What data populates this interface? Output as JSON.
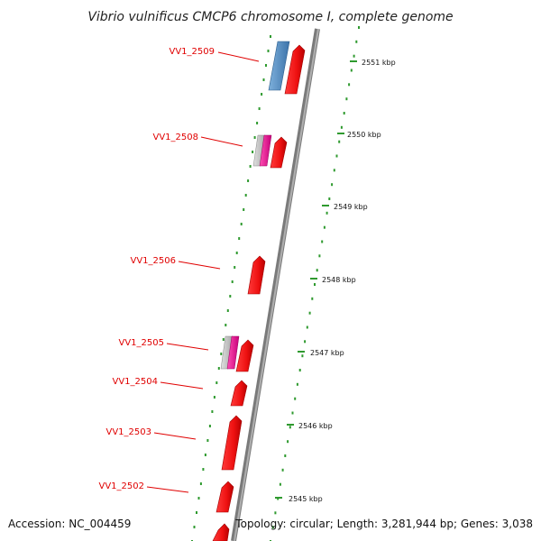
{
  "title": "Vibrio vulnificus CMCP6 chromosome I, complete genome",
  "footer": {
    "accession": "Accession: NC_004459",
    "topology": "Topology: circular; Length: 3,281,944 bp; Genes: 3,038"
  },
  "colors": {
    "backbone": "#8a8a8a",
    "tick": "#2f9a2f",
    "gene_label": "#e00000",
    "cds": "#ee1111",
    "trna": "#4a83b8",
    "rrna_grey": "#bdbdbd",
    "rrna_magenta": "#e0108a"
  },
  "kbp_labels": [
    "2551 kbp",
    "2550 kbp",
    "2549 kbp",
    "2548 kbp",
    "2547 kbp",
    "2546 kbp",
    "2545 kbp"
  ],
  "gene_labels": [
    "VV1_2509",
    "VV1_2508",
    "VV1_2506",
    "VV1_2505",
    "VV1_2504",
    "VV1_2503",
    "VV1_2502"
  ]
}
